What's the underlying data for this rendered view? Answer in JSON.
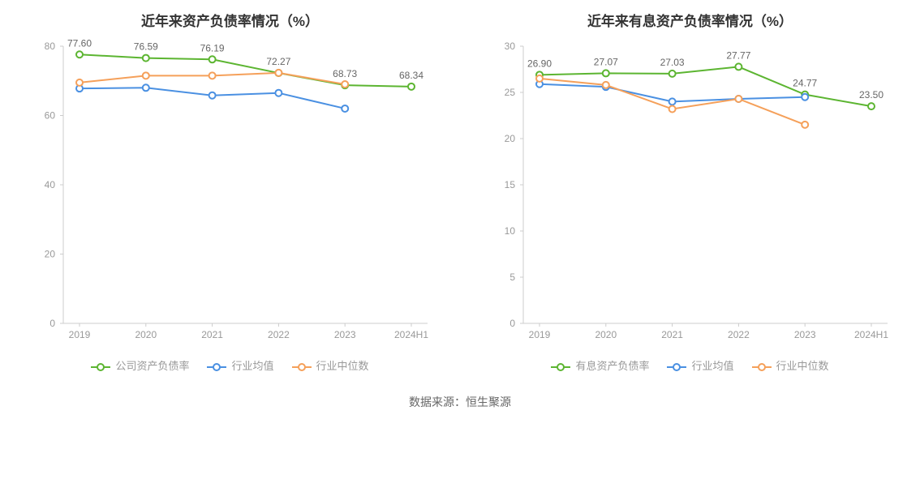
{
  "source_label": "数据来源：恒生聚源",
  "palette": {
    "axis": "#cccccc",
    "grid": "#eeeeee",
    "tick_text": "#999999",
    "title_text": "#333333",
    "label_text": "#666666"
  },
  "left_chart": {
    "type": "line",
    "title": "近年来资产负债率情况（%）",
    "title_fontsize": 17,
    "categories": [
      "2019",
      "2020",
      "2021",
      "2022",
      "2023",
      "2024H1"
    ],
    "ylim": [
      0,
      80
    ],
    "yticks": [
      0,
      20,
      40,
      60,
      80
    ],
    "x_tick_fontsize": 12,
    "y_tick_fontsize": 12,
    "background_color": "#ffffff",
    "marker_radius": 4,
    "line_width": 2,
    "series": [
      {
        "name": "公司资产负债率",
        "color": "#5cb531",
        "marker": "circle-open",
        "show_labels": true,
        "label_fontsize": 12,
        "values": [
          77.6,
          76.59,
          76.19,
          72.27,
          68.73,
          68.34
        ]
      },
      {
        "name": "行业均值",
        "color": "#4a90e2",
        "marker": "circle-open",
        "show_labels": false,
        "values": [
          67.8,
          68.0,
          65.8,
          66.5,
          62.0,
          null
        ]
      },
      {
        "name": "行业中位数",
        "color": "#f5a05a",
        "marker": "circle-open",
        "show_labels": false,
        "values": [
          69.5,
          71.5,
          71.5,
          72.3,
          69.0,
          null
        ]
      }
    ]
  },
  "right_chart": {
    "type": "line",
    "title": "近年来有息资产负债率情况（%）",
    "title_fontsize": 17,
    "categories": [
      "2019",
      "2020",
      "2021",
      "2022",
      "2023",
      "2024H1"
    ],
    "ylim": [
      0,
      30
    ],
    "yticks": [
      0,
      5,
      10,
      15,
      20,
      25,
      30
    ],
    "x_tick_fontsize": 12,
    "y_tick_fontsize": 12,
    "background_color": "#ffffff",
    "marker_radius": 4,
    "line_width": 2,
    "series": [
      {
        "name": "有息资产负债率",
        "color": "#5cb531",
        "marker": "circle-open",
        "show_labels": true,
        "label_fontsize": 12,
        "values": [
          26.9,
          27.07,
          27.03,
          27.77,
          24.77,
          23.5
        ]
      },
      {
        "name": "行业均值",
        "color": "#4a90e2",
        "marker": "circle-open",
        "show_labels": false,
        "values": [
          25.9,
          25.6,
          24.0,
          24.3,
          24.5,
          null
        ]
      },
      {
        "name": "行业中位数",
        "color": "#f5a05a",
        "marker": "circle-open",
        "show_labels": false,
        "values": [
          26.5,
          25.8,
          23.2,
          24.3,
          21.5,
          null
        ]
      }
    ]
  }
}
